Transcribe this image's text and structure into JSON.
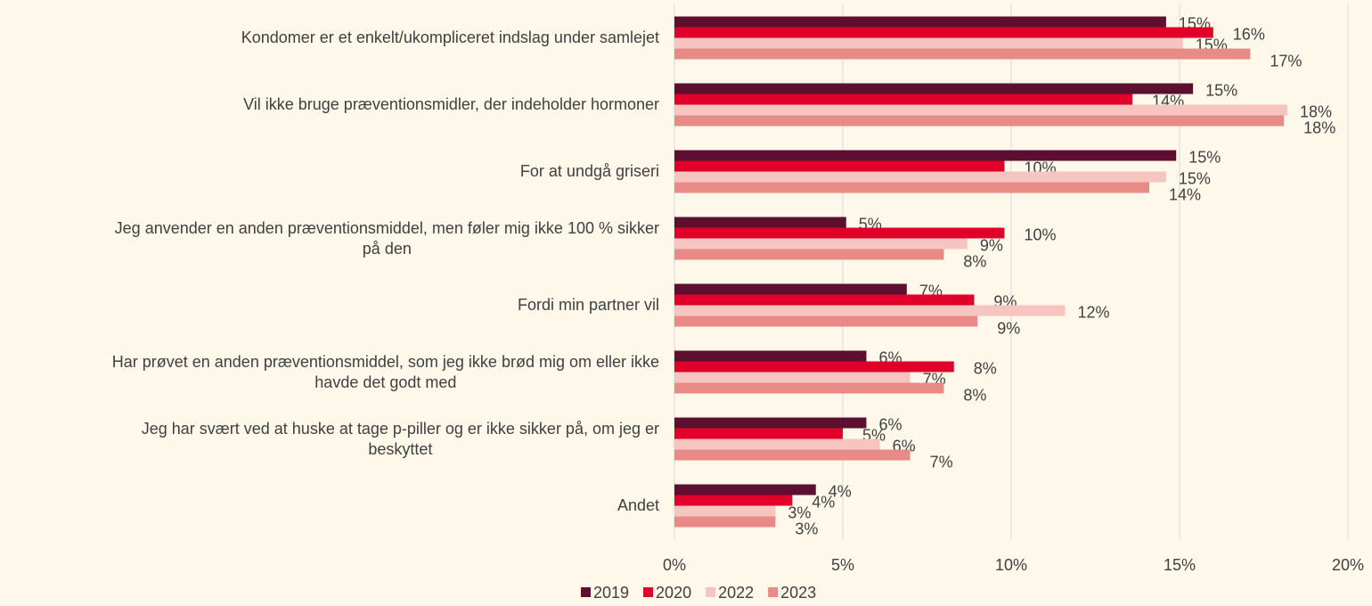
{
  "chart_data": {
    "type": "hbar",
    "categories": [
      "Kondomer er et enkelt/ukompliceret indslag under samlejet",
      "Vil ikke bruge præventionsmidler, der indeholder hormoner",
      "For at undgå griseri",
      "Jeg anvender en anden præventionsmiddel, men føler mig ikke 100 % sikker\npå den",
      "Fordi min partner vil",
      "Har prøvet en anden præventionsmiddel, som jeg ikke brød mig om eller ikke\nhavde det godt med",
      "Jeg har svært ved at huske at tage p-piller og er ikke sikker på, om jeg er\nbeskyttet",
      "Andet"
    ],
    "series": [
      {
        "name": "2019",
        "color": "#5c0f2e",
        "values": [
          14.6,
          15.4,
          14.9,
          5.1,
          6.9,
          5.7,
          5.7,
          4.2
        ],
        "value_labels": [
          "15%",
          "15%",
          "15%",
          "5%",
          "7%",
          "6%",
          "6%",
          "4%"
        ]
      },
      {
        "name": "2020",
        "color": "#e0002a",
        "values": [
          16.0,
          13.6,
          9.8,
          9.8,
          8.9,
          8.3,
          5.0,
          3.5
        ],
        "value_labels": [
          "16%",
          "14%",
          "10%",
          "10%",
          "9%",
          "8%",
          "5%",
          "4%"
        ]
      },
      {
        "name": "2022",
        "color": "#f7c5c0",
        "values": [
          15.1,
          18.2,
          14.6,
          8.7,
          11.6,
          7.0,
          6.1,
          3.0
        ],
        "value_labels": [
          "15%",
          "18%",
          "15%",
          "9%",
          "12%",
          "7%",
          "6%",
          "3%"
        ]
      },
      {
        "name": "2023",
        "color": "#e88a86",
        "values": [
          17.1,
          18.1,
          14.1,
          8.0,
          9.0,
          8.0,
          7.0,
          3.0
        ],
        "value_labels": [
          "17%",
          "18%",
          "14%",
          "8%",
          "9%",
          "8%",
          "7%",
          "3%"
        ]
      }
    ],
    "xlim": [
      0,
      20
    ],
    "xticks": [
      {
        "value": 0,
        "label": "0%"
      },
      {
        "value": 5,
        "label": "5%"
      },
      {
        "value": 10,
        "label": "10%"
      },
      {
        "value": 15,
        "label": "15%"
      },
      {
        "value": 20,
        "label": "20%"
      }
    ],
    "grid": true,
    "legend": "bottom"
  }
}
